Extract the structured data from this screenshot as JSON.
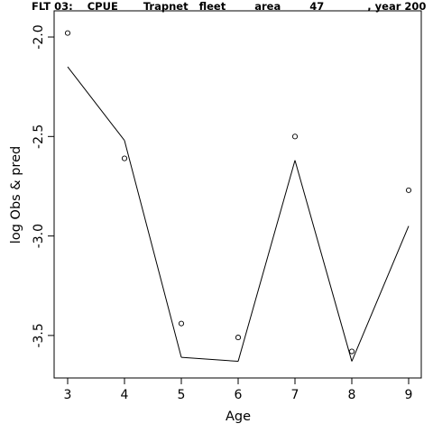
{
  "chart_data": {
    "type": "line",
    "title": "FLT 03:    CPUE       Trapnet   fleet        area        47            , year 200",
    "xlabel": "Age",
    "ylabel": "log Obs & pred",
    "xlim": [
      3,
      9
    ],
    "ylim": [
      -3.7,
      -1.95
    ],
    "x_ticks": [
      3,
      4,
      5,
      6,
      7,
      8,
      9
    ],
    "y_ticks": [
      -3.5,
      -3.0,
      -2.5,
      -2.0
    ],
    "y_tick_labels": [
      "-3.5",
      "-3.0",
      "-2.5",
      "-2.0"
    ],
    "grid": false,
    "series": [
      {
        "kind": "points",
        "x": [
          3,
          4,
          5,
          6,
          7,
          8,
          9
        ],
        "y": [
          -1.98,
          -2.61,
          -3.44,
          -3.51,
          -2.5,
          -3.58,
          -2.77
        ]
      },
      {
        "kind": "line",
        "x": [
          3,
          4,
          5,
          6,
          7,
          8,
          9
        ],
        "y": [
          -2.15,
          -2.52,
          -3.61,
          -3.63,
          -2.62,
          -3.63,
          -2.95
        ]
      }
    ]
  }
}
